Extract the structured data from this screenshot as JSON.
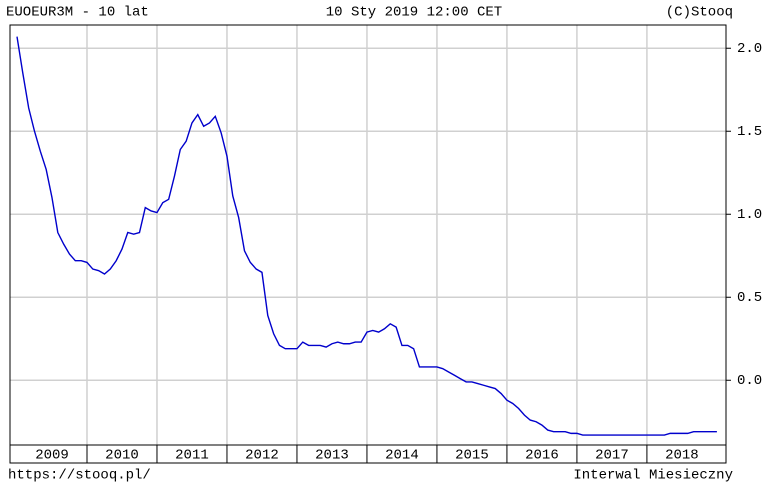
{
  "chart_data": {
    "type": "line",
    "title": "EUOEUR3M - 10 lat",
    "date_text": "10 Sty 2019 12:00 CET",
    "source": "(C)Stooq",
    "footer_left": "https://stooq.pl/",
    "footer_right": "Interwal Miesieczny",
    "color": "#0000cc",
    "grid": true,
    "xlim": [
      2008.9,
      2019.13
    ],
    "xticks": [
      2009,
      2010,
      2011,
      2012,
      2013,
      2014,
      2015,
      2016,
      2017,
      2018
    ],
    "ylim": [
      -0.39,
      2.14
    ],
    "yticks": [
      {
        "value": 0,
        "label": "0.0"
      },
      {
        "value": 0.5,
        "label": "0.5"
      },
      {
        "value": 1,
        "label": "1.0"
      },
      {
        "value": 1.5,
        "label": "1.5"
      },
      {
        "value": 2,
        "label": "2.0"
      }
    ],
    "x": [
      2009,
      2009.083,
      2009.167,
      2009.25,
      2009.333,
      2009.417,
      2009.5,
      2009.583,
      2009.667,
      2009.75,
      2009.833,
      2009.917,
      2010,
      2010.083,
      2010.167,
      2010.25,
      2010.333,
      2010.417,
      2010.5,
      2010.583,
      2010.667,
      2010.75,
      2010.833,
      2010.917,
      2011,
      2011.083,
      2011.167,
      2011.25,
      2011.333,
      2011.417,
      2011.5,
      2011.583,
      2011.667,
      2011.75,
      2011.833,
      2011.917,
      2012,
      2012.083,
      2012.167,
      2012.25,
      2012.333,
      2012.417,
      2012.5,
      2012.583,
      2012.667,
      2012.75,
      2012.833,
      2012.917,
      2013,
      2013.083,
      2013.167,
      2013.25,
      2013.333,
      2013.417,
      2013.5,
      2013.583,
      2013.667,
      2013.75,
      2013.833,
      2013.917,
      2014,
      2014.083,
      2014.167,
      2014.25,
      2014.333,
      2014.417,
      2014.5,
      2014.583,
      2014.667,
      2014.75,
      2014.833,
      2014.917,
      2015,
      2015.083,
      2015.167,
      2015.25,
      2015.333,
      2015.417,
      2015.5,
      2015.583,
      2015.667,
      2015.75,
      2015.833,
      2015.917,
      2016,
      2016.083,
      2016.167,
      2016.25,
      2016.333,
      2016.417,
      2016.5,
      2016.583,
      2016.667,
      2016.75,
      2016.833,
      2016.917,
      2017,
      2017.083,
      2017.167,
      2017.25,
      2017.333,
      2017.417,
      2017.5,
      2017.583,
      2017.667,
      2017.75,
      2017.833,
      2017.917,
      2018,
      2018.083,
      2018.167,
      2018.25,
      2018.333,
      2018.417,
      2018.5,
      2018.583,
      2018.667,
      2018.75,
      2018.833,
      2018.917,
      2019
    ],
    "values": [
      2.07,
      1.85,
      1.64,
      1.5,
      1.38,
      1.27,
      1.1,
      0.89,
      0.82,
      0.76,
      0.72,
      0.72,
      0.71,
      0.67,
      0.66,
      0.64,
      0.67,
      0.72,
      0.79,
      0.89,
      0.88,
      0.89,
      1.04,
      1.02,
      1.01,
      1.07,
      1.09,
      1.23,
      1.39,
      1.44,
      1.55,
      1.6,
      1.53,
      1.55,
      1.59,
      1.49,
      1.35,
      1.11,
      0.98,
      0.78,
      0.71,
      0.67,
      0.65,
      0.39,
      0.28,
      0.21,
      0.19,
      0.19,
      0.19,
      0.23,
      0.21,
      0.21,
      0.21,
      0.2,
      0.22,
      0.23,
      0.22,
      0.22,
      0.23,
      0.23,
      0.29,
      0.3,
      0.29,
      0.31,
      0.34,
      0.32,
      0.21,
      0.21,
      0.19,
      0.08,
      0.08,
      0.08,
      0.08,
      0.07,
      0.05,
      0.03,
      0.01,
      -0.01,
      -0.01,
      -0.02,
      -0.03,
      -0.04,
      -0.05,
      -0.08,
      -0.12,
      -0.14,
      -0.17,
      -0.21,
      -0.24,
      -0.25,
      -0.27,
      -0.3,
      -0.31,
      -0.31,
      -0.31,
      -0.32,
      -0.32,
      -0.33,
      -0.33,
      -0.33,
      -0.33,
      -0.33,
      -0.33,
      -0.33,
      -0.33,
      -0.33,
      -0.33,
      -0.33,
      -0.33,
      -0.33,
      -0.33,
      -0.33,
      -0.32,
      -0.32,
      -0.32,
      -0.32,
      -0.31,
      -0.31,
      -0.31,
      -0.31,
      -0.31
    ]
  }
}
